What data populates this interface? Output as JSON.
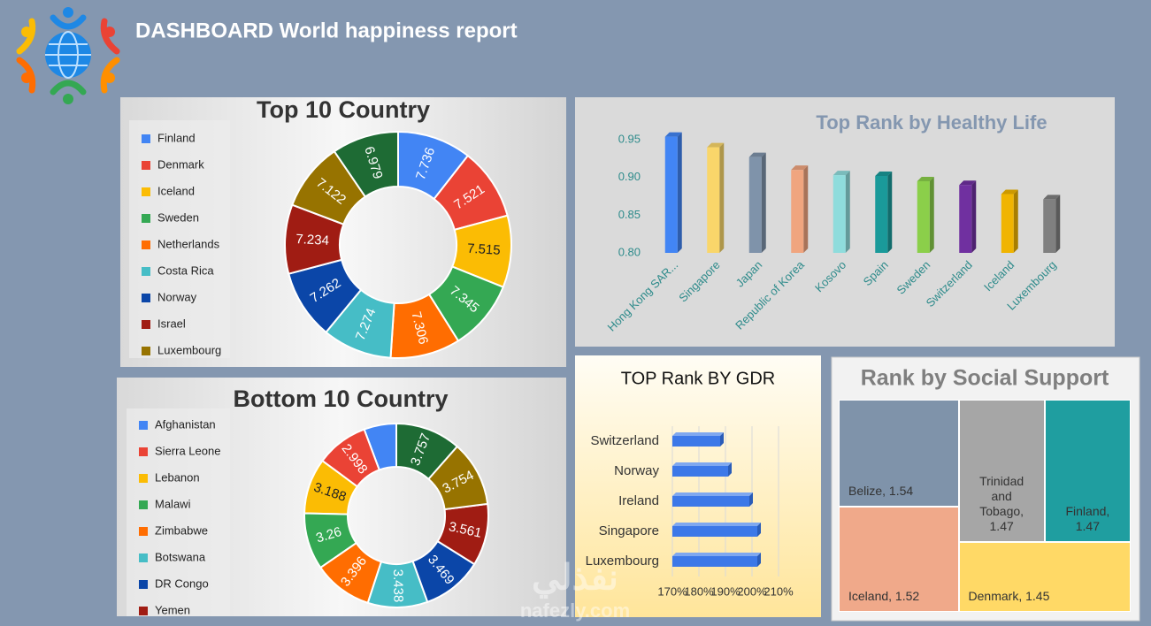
{
  "header": {
    "title": "DASHBOARD World happiness report"
  },
  "watermark": {
    "arabic": "نفذلي",
    "latin": "nafezly.com"
  },
  "chart_data": [
    {
      "type": "donut",
      "title": "Top 10 Country",
      "direction": "clockwise",
      "categories": [
        "Finland",
        "Denmark",
        "Iceland",
        "Sweden",
        "Netherlands",
        "Costa Rica",
        "Norway",
        "Israel",
        "Luxembourg",
        null
      ],
      "values": [
        7.736,
        7.521,
        7.515,
        7.345,
        7.306,
        7.274,
        7.262,
        7.234,
        7.122,
        6.979
      ],
      "colors": [
        "#4285f4",
        "#ea4335",
        "#fbbc04",
        "#34a853",
        "#ff6d01",
        "#46bdc6",
        "#0b46a8",
        "#a01c13",
        "#977300",
        "#1e6b34"
      ]
    },
    {
      "type": "donut",
      "title": "Bottom 10 Country",
      "direction": "counterclockwise",
      "categories": [
        "Afghanistan",
        "Sierra Leone",
        "Lebanon",
        "Malawi",
        "Zimbabwe",
        "Botswana",
        "DR Congo",
        "Yemen",
        null,
        null
      ],
      "values": [
        1.859,
        2.998,
        3.188,
        3.26,
        3.396,
        3.438,
        3.469,
        3.561,
        3.754,
        3.757
      ],
      "colors": [
        "#4285f4",
        "#ea4335",
        "#fbbc04",
        "#34a853",
        "#ff6d01",
        "#46bdc6",
        "#0b46a8",
        "#a01c13",
        "#977300",
        "#1e6b34"
      ]
    },
    {
      "type": "bar3d",
      "title": "Top Rank by Healthy Life",
      "categories": [
        "Hong Kong SAR...",
        "Singapore",
        "Japan",
        "Republic of Korea",
        "Kosovo",
        "Spain",
        "Sweden",
        "Switzerland",
        "Iceland",
        "Luxembourg"
      ],
      "values": [
        0.954,
        0.94,
        0.927,
        0.91,
        0.903,
        0.902,
        0.895,
        0.89,
        0.878,
        0.871
      ],
      "colors": [
        "#4285f4",
        "#f9d66a",
        "#7f93aa",
        "#f0a57f",
        "#8fdcdc",
        "#1a9a9a",
        "#8bcf4a",
        "#7030a0",
        "#f0b400",
        "#808080"
      ],
      "ylim": [
        0.8,
        0.96
      ],
      "yticks": [
        0.95,
        {
          "value": 0.9,
          "label": "0.90"
        },
        0.85,
        {
          "value": 0.8,
          "label": "0.80"
        }
      ]
    },
    {
      "type": "hbar",
      "title": "TOP Rank BY GDR",
      "categories": [
        "Switzerland",
        "Norway",
        "Ireland",
        "Singapore",
        "Luxembourg"
      ],
      "values": [
        188,
        191,
        199,
        202,
        202
      ],
      "color": "#3c78e8",
      "xlim": [
        170,
        210
      ],
      "xticks": [
        {
          "value": 170,
          "label": "170%"
        },
        {
          "value": 180,
          "label": "180%"
        },
        {
          "value": 190,
          "label": "190%"
        },
        {
          "value": 200,
          "label": "200%"
        },
        {
          "value": 210,
          "label": "210%"
        }
      ],
      "grid": true
    },
    {
      "type": "treemap",
      "title": "Rank by Social Support",
      "values": [
        1.54,
        1.52,
        1.47,
        1.47,
        1.45
      ],
      "value_labels": [
        "Belize, 1.54",
        "Iceland, 1.52",
        "Trinidad and Tobago, 1.47",
        "Finland, 1.47",
        "Denmark, 1.45"
      ],
      "colors": [
        "#7f93aa",
        "#f0a98a",
        "#a6a6a6",
        "#1f9ea0",
        "#ffd966"
      ]
    }
  ]
}
